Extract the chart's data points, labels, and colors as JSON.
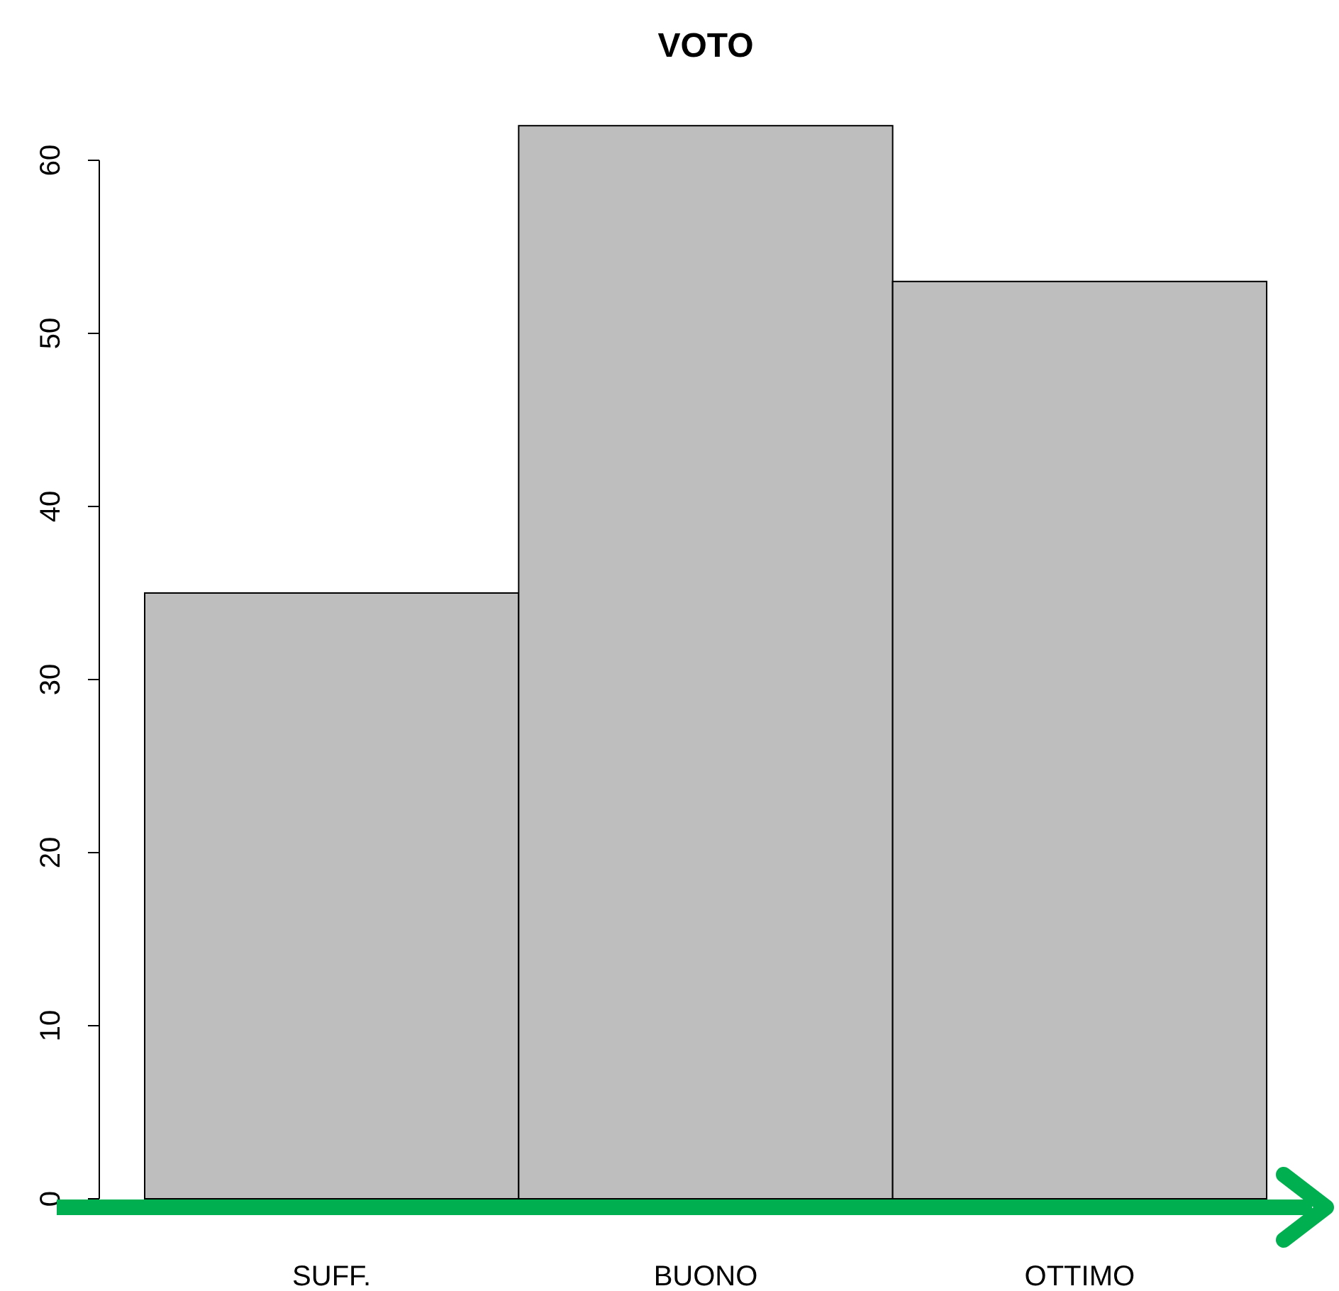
{
  "chart_data": {
    "type": "bar",
    "title": "VOTO",
    "categories": [
      "SUFF.",
      "BUONO",
      "OTTIMO"
    ],
    "values": [
      35,
      62,
      53
    ],
    "color": "#bebebe",
    "ylim": [
      0,
      62
    ],
    "yticks": [
      0,
      10,
      20,
      30,
      40,
      50,
      60
    ]
  }
}
